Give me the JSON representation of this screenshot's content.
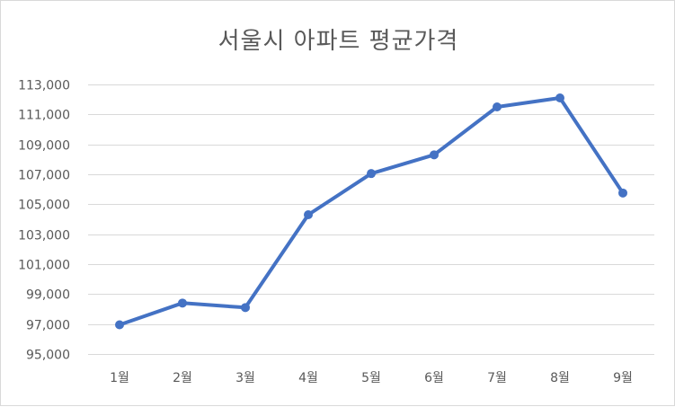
{
  "chart_data": {
    "type": "line",
    "title": "서울시 아파트 평균가격",
    "xlabel": "",
    "ylabel": "",
    "categories": [
      "1월",
      "2월",
      "3월",
      "4월",
      "5월",
      "6월",
      "7월",
      "8월",
      "9월"
    ],
    "series": [
      {
        "values": [
          96950,
          98400,
          98100,
          104300,
          107050,
          108300,
          111500,
          112100,
          105750
        ],
        "color": "#4472c4"
      }
    ],
    "ylim": [
      95000,
      113000
    ],
    "yticks": [
      95000,
      97000,
      99000,
      101000,
      103000,
      105000,
      107000,
      109000,
      111000,
      113000
    ],
    "ytick_labels": [
      "95,000",
      "97,000",
      "99,000",
      "101,000",
      "103,000",
      "105,000",
      "107,000",
      "109,000",
      "111,000",
      "113,000"
    ],
    "grid": true,
    "gridline_color": "#d9d9d9",
    "markers": true,
    "legend": "none"
  }
}
